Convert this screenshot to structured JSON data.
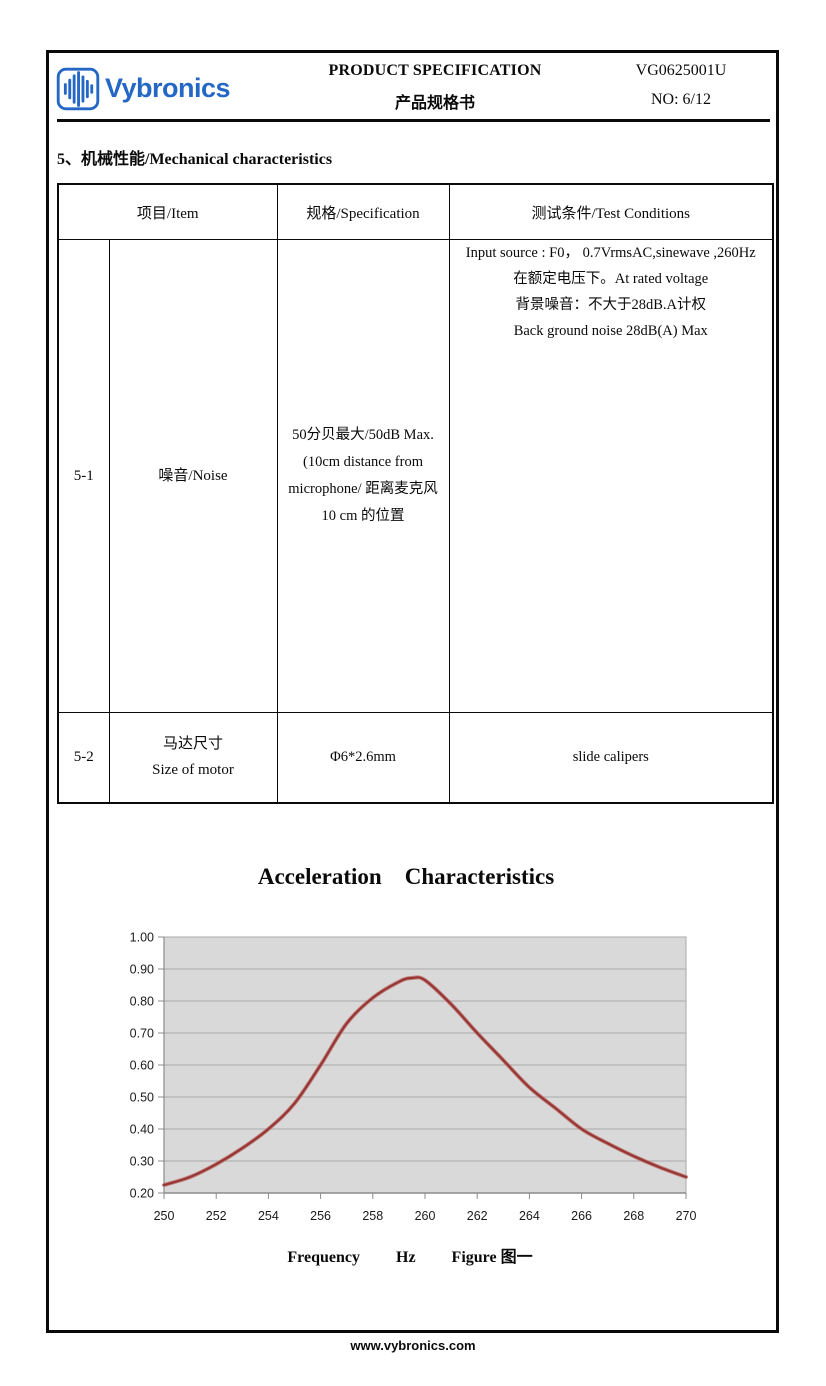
{
  "header": {
    "logo_text": "Vybronics",
    "title_en": "PRODUCT SPECIFICATION",
    "title_cn": "产品规格书",
    "doc_no": "VG0625001U",
    "page_no": "NO: 6/12"
  },
  "section": {
    "title": "5、机械性能/Mechanical characteristics"
  },
  "table": {
    "headers": {
      "item": "项目/Item",
      "spec": "规格/Specification",
      "test": "测试条件/Test Conditions"
    },
    "rows": [
      {
        "id": "5-1",
        "item_lines": [
          "噪音/Noise"
        ],
        "spec_lines": [
          "50分贝最大/50dB Max.",
          "(10cm distance from",
          "microphone/  距离麦克风",
          "10 cm  的位置"
        ],
        "test_lines": [
          "Input source : F0， 0.7VrmsAC,sinewave ,260Hz",
          "在额定电压下。At rated voltage",
          "背景噪音：不大于28dB.A计权",
          "Back ground noise 28dB(A) Max"
        ]
      },
      {
        "id": "5-2",
        "item_lines": [
          "马达尺寸",
          "Size of motor"
        ],
        "spec_lines": [
          "Φ6*2.6mm"
        ],
        "test_lines": [
          "slide calipers"
        ]
      }
    ]
  },
  "chart": {
    "title": "Acceleration    Characteristics",
    "xlabel_freq": "Frequency",
    "xlabel_unit": "Hz",
    "xlabel_fig": "Figure 图一"
  },
  "chart_data": {
    "type": "line",
    "title": "Acceleration Characteristics",
    "xlabel": "Frequency Hz",
    "figure_label": "Figure 图一",
    "x": [
      250,
      251,
      252,
      253,
      254,
      255,
      256,
      257,
      258,
      259,
      259.5,
      260,
      261,
      262,
      263,
      264,
      265,
      266,
      267,
      268,
      269,
      270
    ],
    "values": [
      0.225,
      0.25,
      0.29,
      0.34,
      0.4,
      0.48,
      0.6,
      0.73,
      0.81,
      0.86,
      0.872,
      0.865,
      0.79,
      0.7,
      0.615,
      0.53,
      0.465,
      0.4,
      0.355,
      0.315,
      0.28,
      0.25
    ],
    "xlim": [
      250,
      270
    ],
    "ylim": [
      0.2,
      1.0
    ],
    "x_ticks": [
      250,
      252,
      254,
      256,
      258,
      260,
      262,
      264,
      266,
      268,
      270
    ],
    "y_ticks": [
      "1.00",
      "0.90",
      "0.80",
      "0.70",
      "0.60",
      "0.50",
      "0.40",
      "0.30",
      "0.20"
    ],
    "grid": true,
    "legend": "none",
    "plot_bg": "#d9d9d9",
    "line_color": "#953735",
    "line_halo_color": "#c0716c",
    "grid_color": "#a9a9a9",
    "axis_color": "#8c8c8c"
  },
  "footer": {
    "url": "www.vybronics.com"
  }
}
